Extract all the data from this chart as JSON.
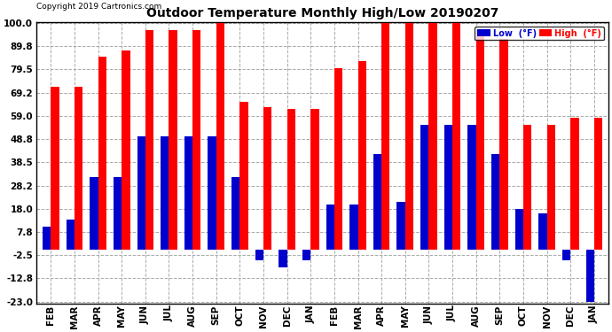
{
  "title": "Outdoor Temperature Monthly High/Low 20190207",
  "copyright": "Copyright 2019 Cartronics.com",
  "months": [
    "FEB",
    "MAR",
    "APR",
    "MAY",
    "JUN",
    "JUL",
    "AUG",
    "SEP",
    "OCT",
    "NOV",
    "DEC",
    "JAN",
    "FEB",
    "MAR",
    "APR",
    "MAY",
    "JUN",
    "JUL",
    "AUG",
    "SEP",
    "OCT",
    "NOV",
    "DEC",
    "JAN"
  ],
  "high_values": [
    72,
    72,
    85,
    88,
    97,
    97,
    97,
    100,
    65,
    63,
    62,
    62,
    80,
    83,
    100,
    100,
    100,
    100,
    97,
    93,
    55,
    55,
    58,
    58
  ],
  "low_values": [
    10,
    13,
    32,
    32,
    50,
    50,
    50,
    50,
    32,
    -5,
    -8,
    -5,
    20,
    20,
    42,
    21,
    55,
    55,
    55,
    42,
    18,
    16,
    -5,
    -23
  ],
  "high_color": "#ff0000",
  "low_color": "#0000cc",
  "bg_color": "#ffffff",
  "grid_color": "#aaaaaa",
  "ylim_min": -23.0,
  "ylim_max": 100.0,
  "yticks": [
    100.0,
    89.8,
    79.5,
    69.2,
    59.0,
    48.8,
    38.5,
    28.2,
    18.0,
    7.8,
    -2.5,
    -12.8,
    -23.0
  ],
  "legend_low_text": "Low  (°F)",
  "legend_high_text": "High  (°F)"
}
